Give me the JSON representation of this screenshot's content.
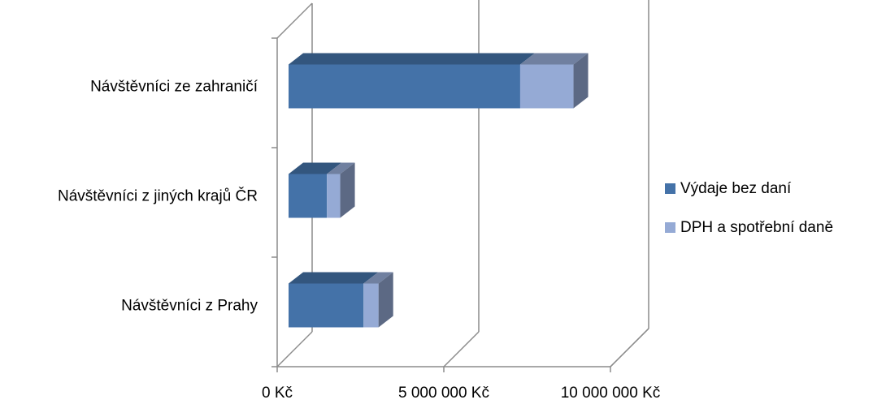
{
  "chart_data": {
    "type": "bar",
    "orientation": "horizontal",
    "stacked": true,
    "three_d": true,
    "categories": [
      "Návštěvníci ze zahraničí",
      "Návštěvníci z jiných krajů ČR",
      "Návštěvníci z Prahy"
    ],
    "series": [
      {
        "name": "Výdaje bez daní",
        "values": [
          6950000,
          1150000,
          2250000
        ],
        "color": "#4472A8"
      },
      {
        "name": "DPH a spotřební daně",
        "values": [
          1600000,
          400000,
          450000
        ],
        "color": "#95AAD5"
      }
    ],
    "x_ticks": [
      "0 Kč",
      "5 000 000 Kč",
      "10 000 000 Kč"
    ],
    "xlim": [
      0,
      10000000
    ],
    "grid": true,
    "legend_position": "right"
  }
}
